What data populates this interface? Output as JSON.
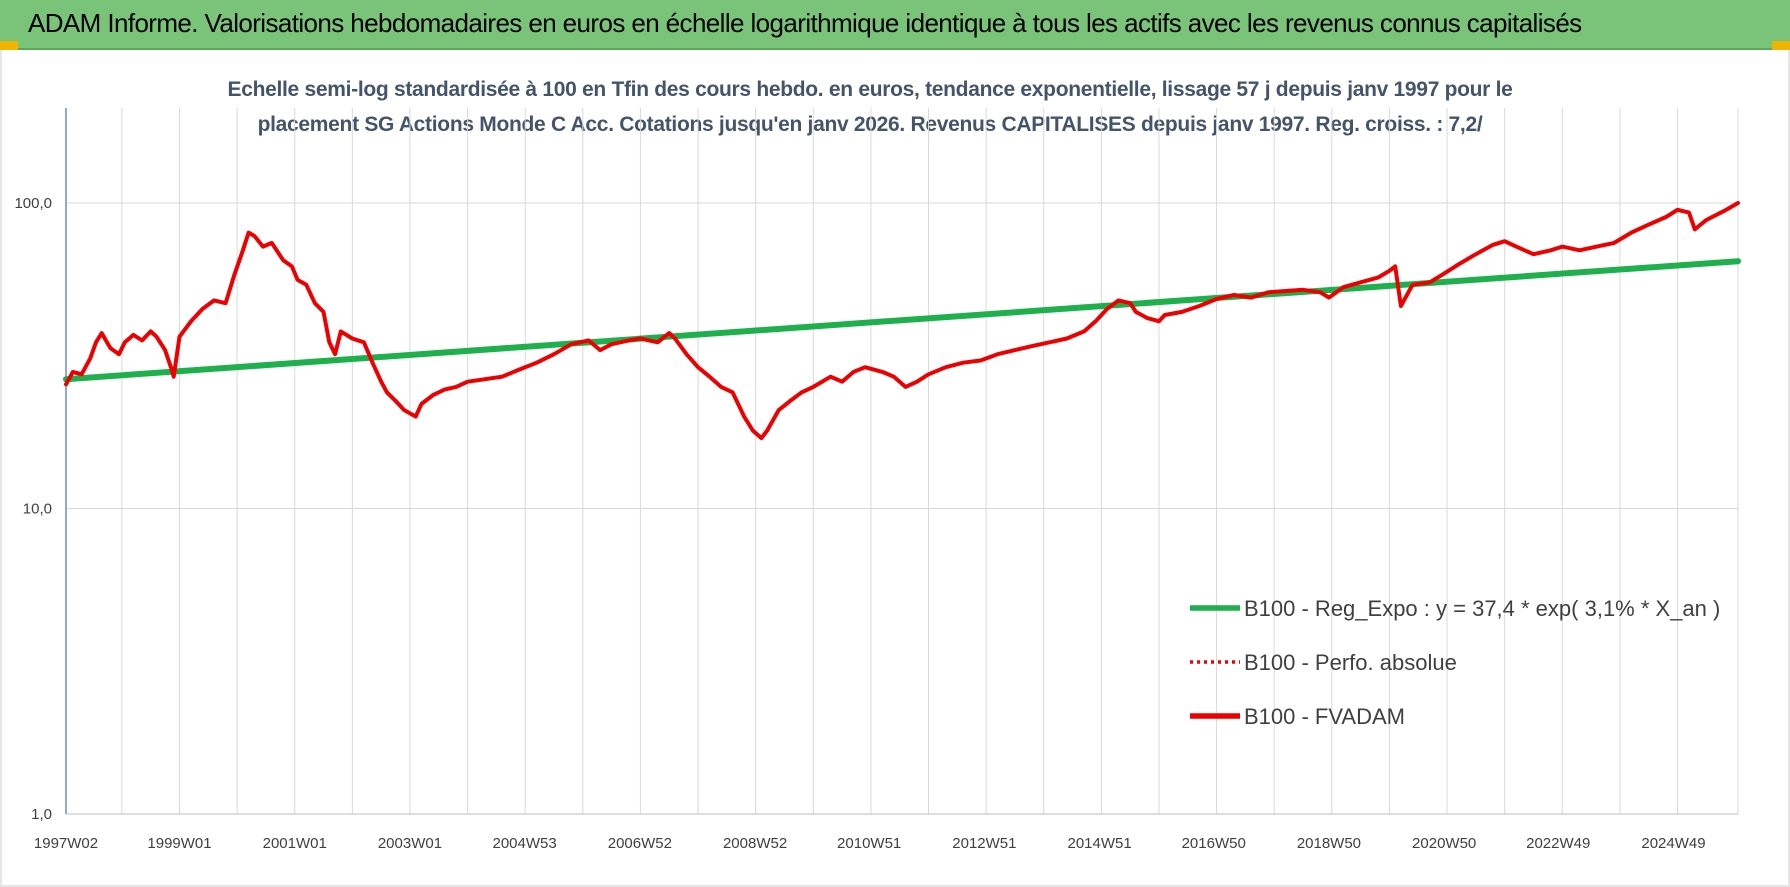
{
  "header": {
    "title": "ADAM Informe. Valorisations hebdomadaires en euros en échelle logarithmique identique à tous les actifs avec les revenus connus capitalisés"
  },
  "colors": {
    "header_bg": "#79c478",
    "corner_accent": "#f0b400",
    "trend_line": "#1db04d",
    "performance_line": "#ee0000",
    "title_text": "#44546a"
  },
  "chart_data": {
    "type": "line",
    "title_lines": [
      "Echelle semi-log standardisée à 100 en Tfin des cours hebdo. en euros, tendance exponentielle, lissage 57 j depuis janv 1997 pour le",
      "placement SG Actions Monde C Acc. Cotations jusqu'en janv 2026. Revenus CAPITALISES depuis janv 1997. Reg. croiss. : 7,2/"
    ],
    "y_scale": "log",
    "ylim": [
      1,
      200
    ],
    "y_ticks": [
      {
        "value": 1,
        "label": "1,0"
      },
      {
        "value": 10,
        "label": "10,0"
      },
      {
        "value": 100,
        "label": "100,0"
      }
    ],
    "xlim": [
      1997.03,
      2026.05
    ],
    "x_ticks": [
      {
        "value": 1997.03,
        "label": "1997W02"
      },
      {
        "value": 1999.0,
        "label": "1999W01"
      },
      {
        "value": 2001.0,
        "label": "2001W01"
      },
      {
        "value": 2003.0,
        "label": "2003W01"
      },
      {
        "value": 2004.99,
        "label": "2004W53"
      },
      {
        "value": 2006.99,
        "label": "2006W52"
      },
      {
        "value": 2008.99,
        "label": "2008W52"
      },
      {
        "value": 2010.97,
        "label": "2010W51"
      },
      {
        "value": 2012.97,
        "label": "2012W51"
      },
      {
        "value": 2014.97,
        "label": "2014W51"
      },
      {
        "value": 2016.95,
        "label": "2016W50"
      },
      {
        "value": 2018.95,
        "label": "2018W50"
      },
      {
        "value": 2020.95,
        "label": "2020W50"
      },
      {
        "value": 2022.93,
        "label": "2022W49"
      },
      {
        "value": 2024.93,
        "label": "2024W49"
      }
    ],
    "grid": true,
    "legend_position": "bottom-right",
    "series": [
      {
        "name": "B100 - Reg_Expo : y = 37,4 * exp( 3,1% *  X_an )",
        "style": "solid",
        "color": "#1db04d",
        "x": [
          1997.03,
          2026.05
        ],
        "y": [
          26.5,
          64.5
        ]
      },
      {
        "name": "B100 - Perfo. absolue",
        "style": "dotted",
        "color": "#ee0000",
        "x": [],
        "y": []
      },
      {
        "name": "B100 - FVADAM",
        "style": "solid",
        "color": "#ee0000",
        "x": [
          1997.03,
          1997.15,
          1997.3,
          1997.45,
          1997.55,
          1997.65,
          1997.8,
          1997.95,
          1998.05,
          1998.2,
          1998.35,
          1998.5,
          1998.6,
          1998.75,
          1998.85,
          1998.9,
          1999.0,
          1999.2,
          1999.4,
          1999.6,
          1999.8,
          1999.95,
          2000.1,
          2000.2,
          2000.3,
          2000.45,
          2000.6,
          2000.8,
          2000.95,
          2001.05,
          2001.2,
          2001.35,
          2001.5,
          2001.6,
          2001.7,
          2001.8,
          2002.0,
          2002.2,
          2002.35,
          2002.5,
          2002.6,
          2002.75,
          2002.9,
          2003.1,
          2003.2,
          2003.4,
          2003.6,
          2003.8,
          2004.0,
          2004.3,
          2004.6,
          2004.9,
          2005.2,
          2005.5,
          2005.8,
          2006.1,
          2006.3,
          2006.5,
          2006.8,
          2007.0,
          2007.3,
          2007.5,
          2007.6,
          2007.8,
          2008.0,
          2008.2,
          2008.4,
          2008.6,
          2008.8,
          2008.95,
          2009.1,
          2009.2,
          2009.4,
          2009.6,
          2009.8,
          2010.0,
          2010.3,
          2010.5,
          2010.7,
          2010.9,
          2011.2,
          2011.4,
          2011.6,
          2011.8,
          2012.0,
          2012.3,
          2012.6,
          2012.9,
          2013.2,
          2013.5,
          2013.8,
          2014.1,
          2014.4,
          2014.7,
          2014.9,
          2015.1,
          2015.3,
          2015.5,
          2015.6,
          2015.8,
          2016.0,
          2016.1,
          2016.4,
          2016.7,
          2017.0,
          2017.3,
          2017.6,
          2017.9,
          2018.2,
          2018.5,
          2018.8,
          2018.95,
          2019.2,
          2019.5,
          2019.8,
          2020.0,
          2020.1,
          2020.2,
          2020.4,
          2020.7,
          2020.9,
          2021.2,
          2021.5,
          2021.8,
          2022.0,
          2022.2,
          2022.5,
          2022.8,
          2023.0,
          2023.3,
          2023.6,
          2023.9,
          2024.2,
          2024.5,
          2024.8,
          2025.0,
          2025.2,
          2025.3,
          2025.5,
          2025.8,
          2026.05
        ],
        "y": [
          25.5,
          28.0,
          27.5,
          31.0,
          35.0,
          37.5,
          33.5,
          32.0,
          35.0,
          37.0,
          35.5,
          38.0,
          36.5,
          33.0,
          29.0,
          27.0,
          36.5,
          41.0,
          45.0,
          48.0,
          47.0,
          58.0,
          70.0,
          80.0,
          78.0,
          72.0,
          74.0,
          65.0,
          62.0,
          56.0,
          54.0,
          47.0,
          44.0,
          35.0,
          32.0,
          38.0,
          36.0,
          35.0,
          30.0,
          26.0,
          24.0,
          22.5,
          21.0,
          20.0,
          22.0,
          23.5,
          24.5,
          25.0,
          26.0,
          26.5,
          27.0,
          28.5,
          30.0,
          32.0,
          34.5,
          35.5,
          33.0,
          34.5,
          35.5,
          36.0,
          35.0,
          37.5,
          36.0,
          32.0,
          29.0,
          27.0,
          25.0,
          24.0,
          20.0,
          18.0,
          17.0,
          18.0,
          21.0,
          22.5,
          24.0,
          25.0,
          27.0,
          26.0,
          28.0,
          29.0,
          28.0,
          27.0,
          25.0,
          26.0,
          27.5,
          29.0,
          30.0,
          30.5,
          32.0,
          33.0,
          34.0,
          35.0,
          36.0,
          38.0,
          41.0,
          45.0,
          48.0,
          47.0,
          44.0,
          42.0,
          41.0,
          43.0,
          44.0,
          46.0,
          48.5,
          50.0,
          49.0,
          51.0,
          51.5,
          52.0,
          51.0,
          49.0,
          53.0,
          55.0,
          57.0,
          60.0,
          62.0,
          46.0,
          54.0,
          55.0,
          58.0,
          63.0,
          68.0,
          73.0,
          75.0,
          72.0,
          68.0,
          70.0,
          72.0,
          70.0,
          72.0,
          74.0,
          80.0,
          85.0,
          90.0,
          95.0,
          93.0,
          82.0,
          88.0,
          94.0,
          100.0
        ]
      }
    ]
  }
}
